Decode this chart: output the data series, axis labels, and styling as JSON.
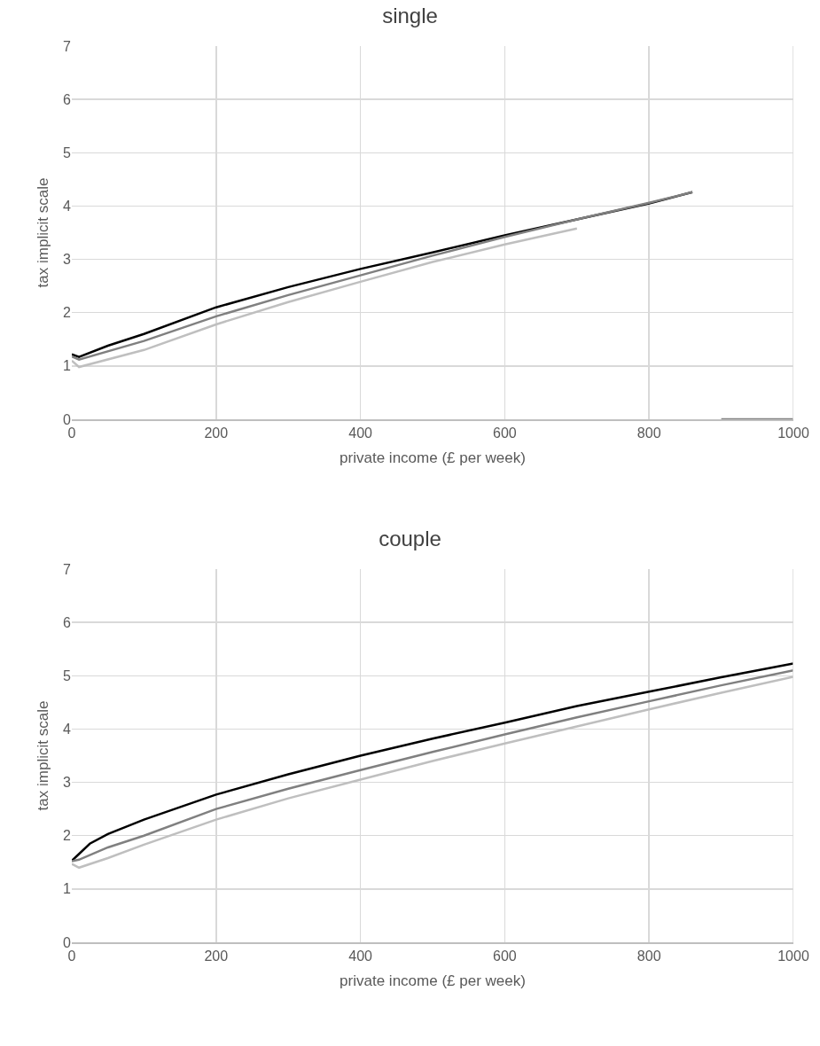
{
  "chart_data": [
    {
      "type": "line",
      "title": "single",
      "xlabel": "private income (£ per week)",
      "ylabel": "tax implicit scale",
      "xlim": [
        0,
        1000
      ],
      "xticks": [
        0,
        200,
        400,
        600,
        800,
        1000
      ],
      "ylim": [
        0,
        7
      ],
      "yticks": [
        0,
        1,
        2,
        3,
        4,
        5,
        6,
        7
      ],
      "grid": true,
      "marker": "none",
      "line_style": "solid",
      "series": [
        {
          "color": "#000000",
          "x": [
            0,
            10,
            50,
            100,
            200,
            300,
            400,
            500,
            600,
            700,
            800,
            860
          ],
          "values": [
            1.22,
            1.17,
            1.38,
            1.6,
            2.1,
            2.48,
            2.82,
            3.13,
            3.45,
            3.75,
            4.05,
            4.26
          ]
        },
        {
          "color": "#808080",
          "x": [
            0,
            10,
            100,
            200,
            300,
            400,
            500,
            600,
            700,
            800,
            860,
            880,
            900,
            1000
          ],
          "values": [
            1.18,
            1.12,
            1.47,
            1.93,
            2.33,
            2.7,
            3.07,
            3.42,
            3.75,
            4.06,
            4.26,
            null,
            0,
            0
          ]
        },
        {
          "color": "#bfbfbf",
          "x": [
            0,
            10,
            100,
            200,
            300,
            400,
            500,
            600,
            700
          ],
          "values": [
            1.1,
            0.98,
            1.3,
            1.78,
            2.2,
            2.58,
            2.95,
            3.28,
            3.58
          ]
        }
      ]
    },
    {
      "type": "line",
      "title": "couple",
      "xlabel": "private income (£ per week)",
      "ylabel": "tax implicit scale",
      "xlim": [
        0,
        1000
      ],
      "xticks": [
        0,
        200,
        400,
        600,
        800,
        1000
      ],
      "ylim": [
        0,
        7
      ],
      "yticks": [
        0,
        1,
        2,
        3,
        4,
        5,
        6,
        7
      ],
      "grid": true,
      "marker": "none",
      "line_style": "solid",
      "series": [
        {
          "color": "#000000",
          "x": [
            0,
            25,
            50,
            100,
            200,
            300,
            400,
            500,
            600,
            700,
            800,
            900,
            1000
          ],
          "values": [
            1.53,
            1.85,
            2.03,
            2.3,
            2.77,
            3.15,
            3.5,
            3.82,
            4.12,
            4.43,
            4.7,
            4.97,
            5.23
          ]
        },
        {
          "color": "#808080",
          "x": [
            0,
            10,
            50,
            100,
            200,
            300,
            400,
            500,
            600,
            700,
            800,
            900,
            1000
          ],
          "values": [
            1.52,
            1.55,
            1.78,
            2.0,
            2.5,
            2.88,
            3.23,
            3.57,
            3.9,
            4.22,
            4.52,
            4.82,
            5.1
          ]
        },
        {
          "color": "#bfbfbf",
          "x": [
            0,
            10,
            50,
            100,
            200,
            300,
            400,
            500,
            600,
            700,
            800,
            900,
            1000
          ],
          "values": [
            1.47,
            1.4,
            1.58,
            1.83,
            2.3,
            2.7,
            3.05,
            3.4,
            3.73,
            4.05,
            4.37,
            4.68,
            4.98
          ]
        }
      ]
    }
  ]
}
